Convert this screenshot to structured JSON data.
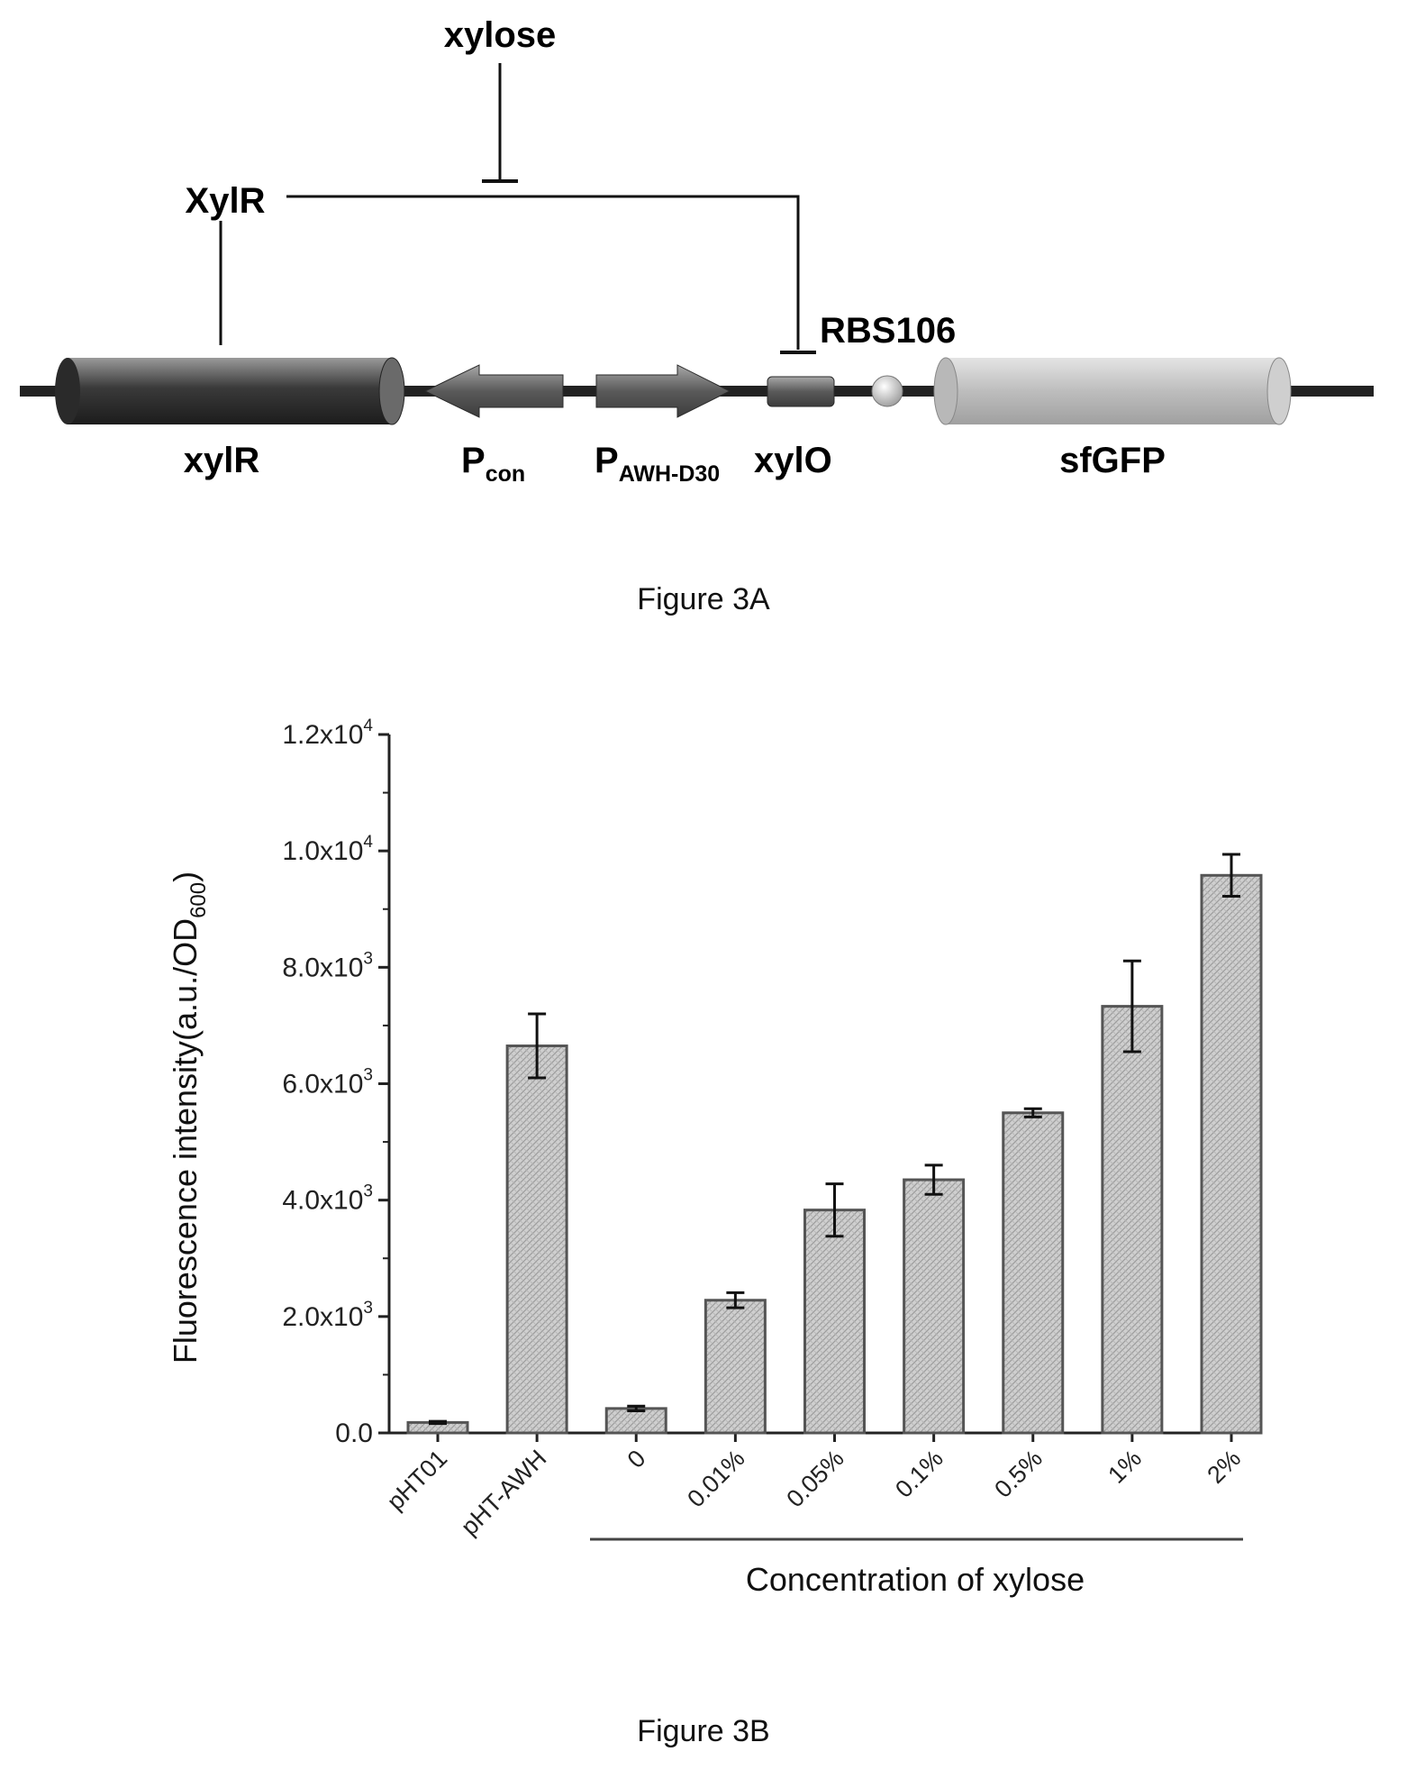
{
  "figure_a": {
    "caption": "Figure 3A",
    "labels": {
      "xylose": "xylose",
      "xylr_protein": "XylR",
      "rbs": "RBS106",
      "xylr_gene": "xylR",
      "pcon_main": "P",
      "pcon_sub": "con",
      "pawh_main": "P",
      "pawh_sub": "AWH-D30",
      "xylo": "xylO",
      "sfgfp": "sfGFP"
    }
  },
  "figure_b": {
    "caption": "Figure 3B",
    "group_label": "Concentration of xylose"
  },
  "chart_data": {
    "type": "bar",
    "categories": [
      "pHT01",
      "pHT-AWH",
      "0",
      "0.01%",
      "0.05%",
      "0.1%",
      "0.5%",
      "1%",
      "2%"
    ],
    "values": [
      180,
      6650,
      420,
      2280,
      3830,
      4350,
      5500,
      7330,
      9580
    ],
    "errors": [
      20,
      550,
      40,
      130,
      450,
      250,
      70,
      780,
      360
    ],
    "ylim": [
      0,
      12000
    ],
    "yticks": [
      {
        "value": 0,
        "mantissa": "0.0",
        "exp": ""
      },
      {
        "value": 2000,
        "mantissa": "2.0x10",
        "exp": "3"
      },
      {
        "value": 4000,
        "mantissa": "4.0x10",
        "exp": "3"
      },
      {
        "value": 6000,
        "mantissa": "6.0x10",
        "exp": "3"
      },
      {
        "value": 8000,
        "mantissa": "8.0x10",
        "exp": "3"
      },
      {
        "value": 10000,
        "mantissa": "1.0x10",
        "exp": "4"
      },
      {
        "value": 12000,
        "mantissa": "1.2x10",
        "exp": "4"
      }
    ],
    "ylabel_main": "Fluorescence intensity(a.u./OD",
    "ylabel_sub": "600",
    "ylabel_end": ")",
    "colors": {
      "bar_fill": "#c8c8c8",
      "bar_stroke": "#555555",
      "axis": "#222222"
    }
  }
}
